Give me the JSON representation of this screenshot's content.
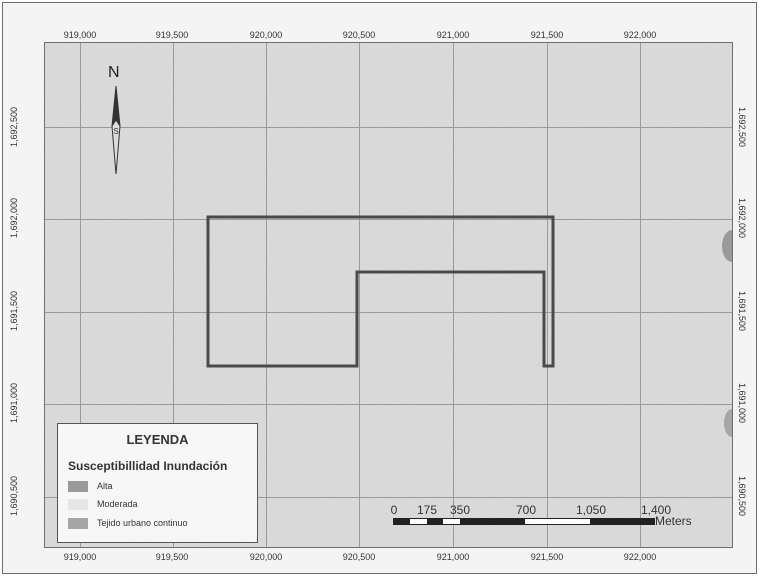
{
  "map": {
    "grid_x_labels": [
      "919,000",
      "919,500",
      "920,000",
      "920,500",
      "921,000",
      "921,500",
      "922,000"
    ],
    "grid_y_labels": [
      "1,692,500",
      "1,692,000",
      "1,691,500",
      "1,691,000",
      "1,690,500"
    ],
    "north_label": "N"
  },
  "legend": {
    "title": "LEYENDA",
    "subtitle": "Susceptibillidad Inundación",
    "items": [
      {
        "label": "Alta",
        "color": "#9a9a9a"
      },
      {
        "label": "Moderada",
        "color": "#e6e6e6"
      },
      {
        "label": "Tejido urbano continuo",
        "color": "#a6a6a6"
      }
    ]
  },
  "scalebar": {
    "labels": [
      "0",
      "175",
      "350",
      "700",
      "1,050",
      "1,400"
    ],
    "units": "Meters"
  },
  "colors": {
    "map_background": "#dcdcdc",
    "grid": "#9a9a9a",
    "outline": "#4a4a4a"
  }
}
